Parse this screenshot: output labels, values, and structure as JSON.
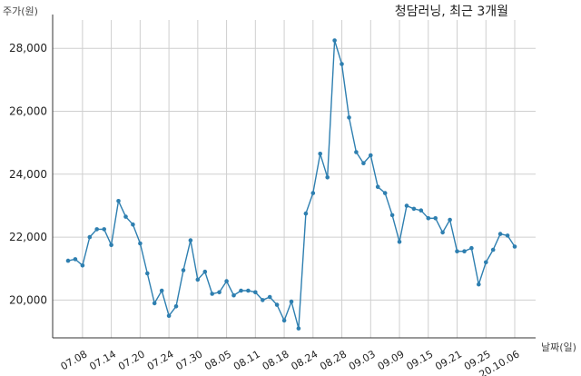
{
  "chart_data": {
    "type": "line",
    "title": "청담러닝, 최근 3개월",
    "ylabel": "주가(원)",
    "xlabel": "날짜(일)",
    "ylim": [
      18800,
      28900
    ],
    "yticks": [
      20000,
      22000,
      24000,
      26000,
      28000
    ],
    "ytick_labels": [
      "20,000",
      "22,000",
      "24,000",
      "26,000",
      "28,000"
    ],
    "grid": true,
    "xtick_labels": [
      "07.08",
      "07.14",
      "07.20",
      "07.24",
      "07.30",
      "08.05",
      "08.11",
      "08.18",
      "08.24",
      "08.28",
      "09.03",
      "09.09",
      "09.15",
      "09.21",
      "09.25",
      "20.10.06"
    ],
    "xtick_indices": [
      2,
      6,
      10,
      14,
      18,
      22,
      26,
      30,
      34,
      38,
      42,
      46,
      50,
      54,
      58,
      62
    ],
    "x": [
      "07.06",
      "07.07",
      "07.08",
      "07.09",
      "07.10",
      "07.13",
      "07.14",
      "07.15",
      "07.16",
      "07.17",
      "07.20",
      "07.21",
      "07.22",
      "07.23",
      "07.24",
      "07.27",
      "07.28",
      "07.29",
      "07.30",
      "07.31",
      "08.03",
      "08.04",
      "08.05",
      "08.06",
      "08.07",
      "08.10",
      "08.11",
      "08.12",
      "08.13",
      "08.14",
      "08.18",
      "08.19",
      "08.20",
      "08.21",
      "08.24",
      "08.25",
      "08.26",
      "08.27",
      "08.28",
      "08.31",
      "09.01",
      "09.02",
      "09.03",
      "09.04",
      "09.07",
      "09.08",
      "09.09",
      "09.10",
      "09.11",
      "09.14",
      "09.15",
      "09.16",
      "09.17",
      "09.18",
      "09.21",
      "09.22",
      "09.23",
      "09.24",
      "09.25",
      "09.28",
      "09.29",
      "10.05",
      "10.06"
    ],
    "series": [
      {
        "values": [
          21250,
          21300,
          21100,
          22000,
          22250,
          22250,
          21750,
          23150,
          22650,
          22400,
          21800,
          20850,
          19900,
          20300,
          19500,
          19800,
          20950,
          21900,
          20650,
          20900,
          20200,
          20250,
          20600,
          20150,
          20300,
          20300,
          20250,
          20000,
          20100,
          19850,
          19350,
          19950,
          19100,
          22750,
          23400,
          24650,
          23900,
          28250,
          27500,
          25800,
          24700,
          24350,
          24600,
          23600,
          23400,
          22700,
          21850,
          23000,
          22900,
          22850,
          22600,
          22600,
          22150,
          22550,
          21550,
          21550,
          21650,
          20500,
          21200,
          21600,
          22100,
          22050,
          21700
        ]
      }
    ]
  }
}
